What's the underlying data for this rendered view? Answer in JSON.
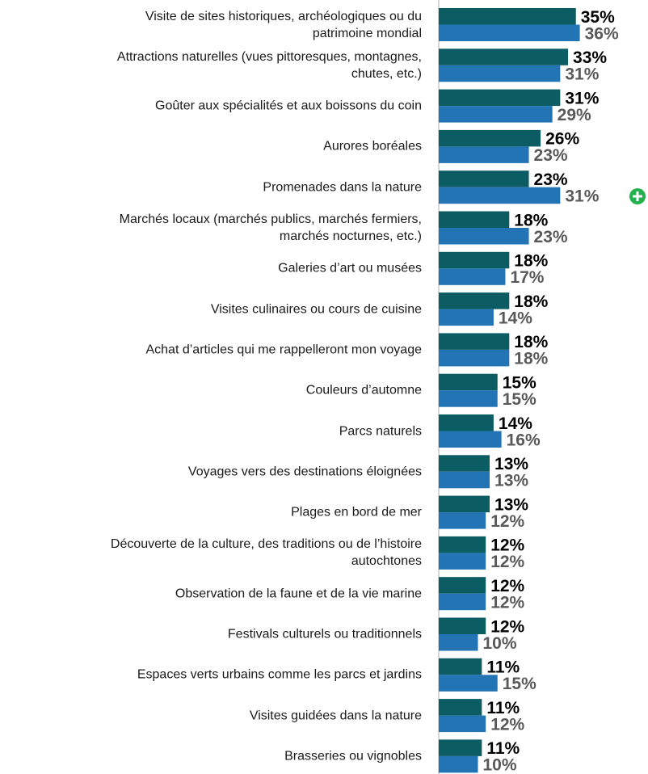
{
  "chart_data": {
    "type": "bar",
    "orientation": "horizontal",
    "categories": [
      "Visite de sites historiques, archéologiques ou du\npatrimoine mondial",
      "Attractions naturelles (vues pittoresques, montagnes,\nchutes, etc.)",
      "Goûter aux spécialités et aux boissons du coin",
      "Aurores boréales",
      "Promenades dans la nature",
      "Marchés locaux (marchés publics, marchés fermiers,\nmarchés nocturnes, etc.)",
      "Galeries d’art ou musées",
      "Visites culinaires ou cours de cuisine",
      "Achat d’articles qui me rappelleront mon voyage",
      "Couleurs d’automne",
      "Parcs naturels",
      "Voyages vers des destinations éloignées",
      "Plages en bord de mer",
      "Découverte de la culture, des traditions ou de l’histoire\nautochtones",
      "Observation de la faune et de la vie marine",
      "Festivals culturels ou traditionnels",
      "Espaces verts urbains comme les parcs et jardins",
      "Visites guidées dans la nature",
      "Brasseries ou vignobles"
    ],
    "series": [
      {
        "color": "#0b5c63",
        "label_color": "#000000",
        "values": [
          35,
          33,
          31,
          26,
          23,
          18,
          18,
          18,
          18,
          15,
          14,
          13,
          13,
          12,
          12,
          12,
          11,
          11,
          11
        ],
        "value_labels": [
          "35%",
          "33%",
          "31%",
          "26%",
          "23%",
          "18%",
          "18%",
          "18%",
          "18%",
          "15%",
          "14%",
          "13%",
          "13%",
          "12%",
          "12%",
          "12%",
          "11%",
          "11%",
          "11%"
        ]
      },
      {
        "color": "#2374b5",
        "label_color": "#595959",
        "values": [
          36,
          31,
          29,
          23,
          31,
          23,
          17,
          14,
          18,
          15,
          16,
          13,
          12,
          12,
          12,
          10,
          15,
          12,
          10
        ],
        "value_labels": [
          "36%",
          "31%",
          "29%",
          "23%",
          "31%",
          "23%",
          "17%",
          "14%",
          "18%",
          "15%",
          "16%",
          "13%",
          "12%",
          "12%",
          "12%",
          "10%",
          "15%",
          "12%",
          "10%"
        ]
      }
    ],
    "xlim": [
      0,
      40
    ]
  }
}
